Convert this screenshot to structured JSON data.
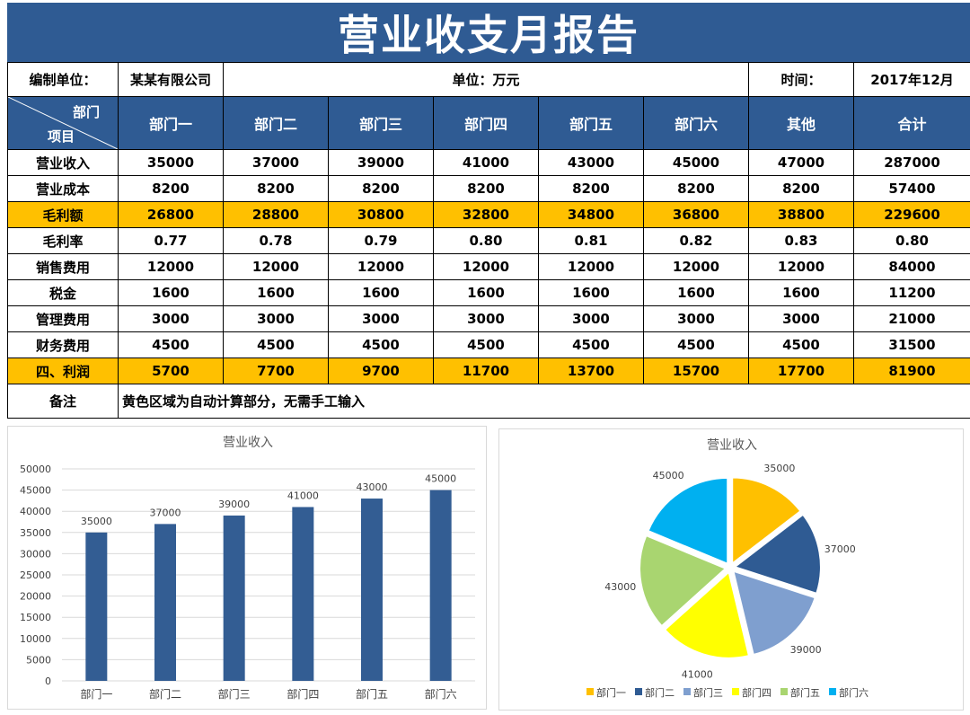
{
  "title": "营业收支月报告",
  "info": {
    "org_label": "编制单位：",
    "org_value": "某某有限公司",
    "unit": "单位：万元",
    "time_label": "时间：",
    "time_value": "2017年12月"
  },
  "header": {
    "corner_top": "部门",
    "corner_bottom": "项目",
    "columns": [
      "部门一",
      "部门二",
      "部门三",
      "部门四",
      "部门五",
      "部门六",
      "其他",
      "合计"
    ]
  },
  "rows": [
    {
      "label": "营业收入",
      "values": [
        "35000",
        "37000",
        "39000",
        "41000",
        "43000",
        "45000",
        "47000",
        "287000"
      ],
      "highlight": false
    },
    {
      "label": "营业成本",
      "values": [
        "8200",
        "8200",
        "8200",
        "8200",
        "8200",
        "8200",
        "8200",
        "57400"
      ],
      "highlight": false
    },
    {
      "label": "毛利额",
      "values": [
        "26800",
        "28800",
        "30800",
        "32800",
        "34800",
        "36800",
        "38800",
        "229600"
      ],
      "highlight": true
    },
    {
      "label": "毛利率",
      "values": [
        "0.77",
        "0.78",
        "0.79",
        "0.80",
        "0.81",
        "0.82",
        "0.83",
        "0.80"
      ],
      "highlight": false
    },
    {
      "label": "销售费用",
      "values": [
        "12000",
        "12000",
        "12000",
        "12000",
        "12000",
        "12000",
        "12000",
        "84000"
      ],
      "highlight": false
    },
    {
      "label": "税金",
      "values": [
        "1600",
        "1600",
        "1600",
        "1600",
        "1600",
        "1600",
        "1600",
        "11200"
      ],
      "highlight": false
    },
    {
      "label": "管理费用",
      "values": [
        "3000",
        "3000",
        "3000",
        "3000",
        "3000",
        "3000",
        "3000",
        "21000"
      ],
      "highlight": false
    },
    {
      "label": "财务费用",
      "values": [
        "4500",
        "4500",
        "4500",
        "4500",
        "4500",
        "4500",
        "4500",
        "31500"
      ],
      "highlight": false
    },
    {
      "label": "四、利润",
      "values": [
        "5700",
        "7700",
        "9700",
        "11700",
        "13700",
        "15700",
        "17700",
        "81900"
      ],
      "highlight": true
    }
  ],
  "note": {
    "label": "备注",
    "text": "黄色区域为自动计算部分，无需手工输入"
  },
  "colors": {
    "header_blue": "#2f5b93",
    "highlight_yellow": "#ffc000",
    "bar": "#335d93"
  },
  "chart_data": [
    {
      "type": "bar",
      "title": "营业收入",
      "categories": [
        "部门一",
        "部门二",
        "部门三",
        "部门四",
        "部门五",
        "部门六"
      ],
      "values": [
        35000,
        37000,
        39000,
        41000,
        43000,
        45000
      ],
      "ylim": [
        0,
        50000
      ],
      "yticks": [
        0,
        5000,
        10000,
        15000,
        20000,
        25000,
        30000,
        35000,
        40000,
        45000,
        50000
      ],
      "grid": true,
      "legend": "none"
    },
    {
      "type": "pie",
      "title": "营业收入",
      "categories": [
        "部门一",
        "部门二",
        "部门三",
        "部门四",
        "部门五",
        "部门六"
      ],
      "values": [
        35000,
        37000,
        39000,
        41000,
        43000,
        45000
      ],
      "colors": [
        "#ffc000",
        "#2f5b93",
        "#7f9fcf",
        "#ffff00",
        "#a9d570",
        "#00b0f0"
      ],
      "legend": "bottom"
    }
  ]
}
